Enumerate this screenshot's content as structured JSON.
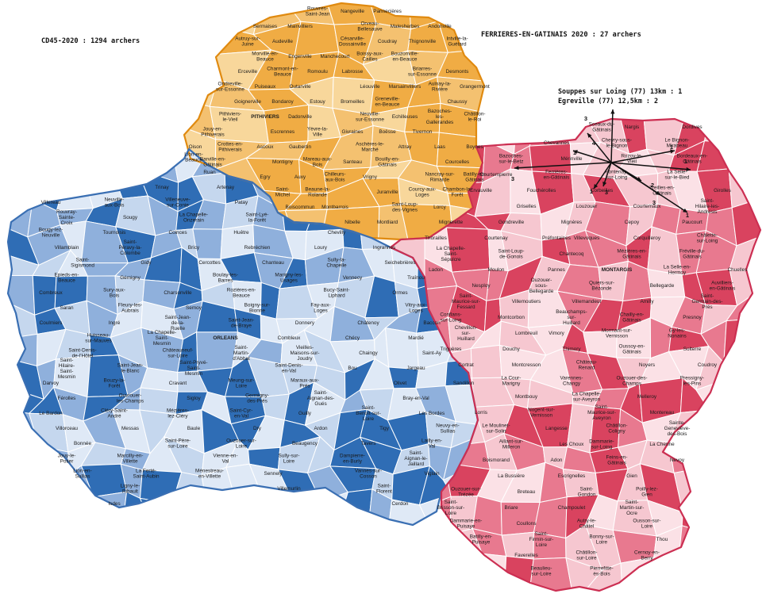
{
  "headers": {
    "left": "CD45-2020 : 1294 archers",
    "right": "FERRIERES-EN-GATINAIS 2020 : 27 archers"
  },
  "annotations": {
    "line1": "Souppes sur Loing (77) 13km : 1",
    "line2": "Egreville (77) 12,5km : 2"
  },
  "colors": {
    "north_orange": "#f0ac44",
    "north_orange_light": "#f8d79b",
    "center_blue": "#4f86c6",
    "center_blue_light": "#c5d7ee",
    "east_pink": "#e8798f",
    "east_pink_light": "#f6c7d0",
    "outline_north": "#e08a10",
    "outline_center": "#3a6fb3",
    "outline_east": "#cc2f52"
  },
  "arrow_counts": [
    "4",
    "1",
    "3",
    "3",
    "1",
    "3",
    "2",
    "3",
    "1",
    "1",
    "1"
  ],
  "communes": {
    "north": [
      "Rouvres-Saint-Jean",
      "Nangeville",
      "Pannecières",
      "Sermaises",
      "Mainvilliers",
      "Orveau-Bellesauve",
      "Malesherbes",
      "Andonville",
      "Autruy-sur-Juine",
      "Audeville",
      "Césarville-Dossainville",
      "Coudray",
      "Thignonville",
      "Intville-la-Guétard",
      "Morville-en-Beauce",
      "Engenville",
      "Manchecourt",
      "Boissy-aux-Cailles",
      "Bouzonville-en-Beauce",
      "Erceville",
      "Charmont-en-Beauce",
      "Romoulu",
      "Labrosse",
      "Briarres-sur-Essonne",
      "Desmonts",
      "Ondreville-sur-Essonne",
      "Puiseaux",
      "Outarville",
      "Léouville",
      "Marsainvilliers",
      "Aulnay-la-Rivière",
      "Grangermont",
      "Goignerville",
      "Bondaroy",
      "Estouy",
      "Bromeilles",
      "Greneville-en-Beauce",
      "Chaussy",
      "Pithiviers-le-Vieil",
      "PITHIVIERS",
      "Dadonville",
      "Neuville-sur-Essonne",
      "Echilleuses",
      "Bazoches-les-Gallerandes",
      "Châtillon-le-Roi",
      "Jouy-en-Pithiverais",
      "Escrennes",
      "Yèvre-la-Ville",
      "Givraines",
      "Boësse",
      "Tivernon",
      "Oison",
      "Crottes-en-Pithiverais",
      "Ascoux",
      "Gaubertin",
      "Aschères-le-Marché",
      "Attray",
      "Laas",
      "Boynes",
      "Barville-en-Gâtinais",
      "Montigny",
      "Mareau-aux-Bois",
      "Santeau",
      "Bouilly-en-Gâtinais",
      "Courcelles",
      "Egry",
      "Auxy",
      "Chilleurs-aux-Bois",
      "Vrigny",
      "Nancray-sur-Rimarde",
      "Batilly-en-Gâtinais",
      "Saint-Michel",
      "Beaune-la-Rolande",
      "Juranville",
      "Courcy-aux-Loges",
      "Chambon-la-Forêt",
      "Boiscommun",
      "Montbarrois",
      "Saint-Loup-des-Vignes",
      "Lorcy",
      "Nibelle",
      "Montliard"
    ],
    "center": [
      "Lion-en-Beauce",
      "Ruan",
      "Trinay",
      "Artenay",
      "Villereau",
      "Neuville-aux-Bois",
      "Villeneuve-sur-Conie",
      "Patay",
      "Rouvray-Sainte-Croix",
      "Sougy",
      "La Chapelle-Onzerain",
      "Saint-Lyé-la-Forêt",
      "Bougy-lez-Neuville",
      "Tournoisis",
      "Coinces",
      "Huêtre",
      "Chevilly",
      "Villamblain",
      "Saint-Péravy-la-Colombe",
      "Bricy",
      "Rebréchien",
      "Loury",
      "Ingrannes",
      "Saint-Sigismond",
      "Gidy",
      "Cercottes",
      "Chanteau",
      "Sully-la-Chapelle",
      "Seichebrières",
      "Epieds-en-Beauce",
      "Gémigny",
      "Boulay-les-Barres",
      "Marigny-les-Usages",
      "Vennecy",
      "Traînou",
      "Combreux",
      "Sury-aux-Bois",
      "Charsonville",
      "Rozières-en-Beauce",
      "Bucy-Saint-Liphard",
      "Ormes",
      "Saran",
      "Fleury-les-Aubrais",
      "Semoy",
      "Boigny-sur-Bionne",
      "Fay-aux-Loges",
      "Vitry-aux-Loges",
      "Coulmiers",
      "Ingré",
      "Saint-Jean-de-la-Ruelle",
      "Saint-Jean-de-Braye",
      "Donnery",
      "Châtenoy",
      "Baccon",
      "Huisseau-sur-Mauves",
      "La Chapelle-Saint-Mesmin",
      "ORLEANS",
      "Combleux",
      "Chécy",
      "Mardié",
      "Saint-Denis-de-l'Hôtel",
      "Châteauneuf-sur-Loire",
      "Saint-Martin-d'Abbat",
      "Vieilles-Maisons-sur-Joudry",
      "Chaingy",
      "Saint-Ay",
      "Saint-Hilaire-Saint-Mesmin",
      "Saint-Jean-le-Blanc",
      "Saint-Pryvé-Saint-Mesmin",
      "Saint-Denis-en-Val",
      "Bou",
      "Jargeau",
      "Darvoy",
      "Bouzy-la-Forêt",
      "Cravant",
      "Meung-sur-Loire",
      "Maraux-aux-Prés",
      "Olivet",
      "Sandillon",
      "Férolles",
      "Ouvrouer-les-Champs",
      "Sigloy",
      "Germigny-des-Prés",
      "Saint-Aignan-des-Gués",
      "Bray-en-Val",
      "Le Bardon",
      "Cléry-Saint-André",
      "Mézières-lez-Cléry",
      "Saint-Cyr-en-Val",
      "Guilly",
      "Saint-Benoît-sur-Loire",
      "Les Bordes",
      "Villorceau",
      "Messas",
      "Baule",
      "Dry",
      "Ardon",
      "Tigy",
      "Neuvy-en-Sullias",
      "Bonnée",
      "Saint-Père-sur-Loire",
      "Ouzouer-sur-Loire",
      "Beaugency",
      "Tavers",
      "Lailly-en-Val",
      "Jouy-le-Potier",
      "Marcilly-en-Villette",
      "Vienne-en-Val",
      "Sully-sur-Loire",
      "Dampierre-en-Burly",
      "Saint-Aignan-le-Jaillard",
      "Lion-en-Sullias",
      "La Ferté-Saint-Aubin",
      "Ménestreau-en-Villette",
      "Sennely",
      "Vannes-sur-Cosson",
      "Viglain",
      "Ligny-le-Ribault",
      "Villemurlin",
      "Saint-Florent",
      "Isdes",
      "Cerdon"
    ],
    "east": [
      "Sceaux-du-Gâtinais",
      "Nargis",
      "Dordives",
      "Chevannes",
      "Chevry-sous-le-Bignon",
      "Le Bignon-Mirabeau",
      "Bazoches-sur-le-Betz",
      "Mérinville",
      "Rozoy-le-Vieil",
      "Bordeaux-en-Gâtinais",
      "Courtempierre",
      "Ferrières-en-Gâtinais",
      "Fontenay-sur-Loing",
      "La Selle-sur-le-Bied",
      "Ervauville",
      "Fouchérolles",
      "Corbeilles",
      "Treilles-en-Gâtinais",
      "Girolles",
      "Griselles",
      "Louzouer",
      "Courtemaux",
      "Saint-Hilaire-les-Andrésis",
      "Mignerette",
      "Gondreville",
      "Mignères",
      "Cepoy",
      "Paucourt",
      "Thorailles",
      "Courtenay",
      "Préfontaines",
      "Villevoques",
      "Corquilleroy",
      "Châlette-sur-Loing",
      "La Chapelle-Saint-Sépulcre",
      "Saint-Loup-de-Gonois",
      "Chantecoq",
      "Mézières-en-Gâtinais",
      "Fréville-du-Gâtinais",
      "Ladon",
      "Moulon",
      "Pannes",
      "MONTARGIS",
      "La Selle-en-Hermoy",
      "Chuelles",
      "Nesploy",
      "Ouzouer-sous-Bellegarde",
      "Quiers-sur-Bézonde",
      "Bellegarde",
      "Auvilliers-en-Gâtinais",
      "Saint-Maurice-sur-Fessard",
      "Villemoutiers",
      "Villemandeur",
      "Amilly",
      "Saint-Germain-des-Prés",
      "Conflans-sur-Loing",
      "Montcorbon",
      "Beauchamps-sur-Huillard",
      "Chailly-en-Gâtinais",
      "Presnoy",
      "Chevillon-sur-Huillard",
      "Lombreuil",
      "Vimory",
      "Mormant-sur-Vernisson",
      "Gy-les-Nonains",
      "Triguères",
      "Douchy",
      "Thimory",
      "Oussoy-en-Gâtinais",
      "Solterre",
      "Cortrat",
      "Montcresson",
      "Château-Renard",
      "Noyers",
      "Coudroy",
      "La Cour-Marigny",
      "Varennes-Changy",
      "Ouzouer-des-Champs",
      "Pressigny-les-Pins",
      "Montbouy",
      "La Chapelle-sur-Aveyron",
      "Melleroy",
      "Lorris",
      "Nogent-sur-Vernisson",
      "Saint-Maurice-sur-Aveyron",
      "Montereau",
      "Le Moulinet-sur-Solin",
      "Langesse",
      "Châtillon-Coligny",
      "Sainte-Geneviève-des-Bois",
      "Aillant-sur-Milleron",
      "Les Choux",
      "Dammarie-sur-Loing",
      "La Chenne",
      "Boismorand",
      "Adon",
      "Feins-en-Gâtinais",
      "Nevoy",
      "La Bussière",
      "Escrignelles",
      "Gien",
      "Ouzouer-sur-Trézée",
      "Breteau",
      "Saint-Gondon",
      "Poilly-lez-Gien",
      "Saint-Brisson-sur-Loire",
      "Briare",
      "Champoulet",
      "Saint-Martin-sur-Ocre",
      "Dammarie-en-Puisaye",
      "Coullons",
      "Autry-le-Châtel",
      "Ousson-sur-Loire",
      "Batilly-en-Puisaye",
      "Saint-Firmin-sur-Loire",
      "Bonny-sur-Loire",
      "Thou",
      "Faverelles",
      "Châtillon-sur-Loire",
      "Cernoy-en-Berry",
      "Beaulieu-sur-Loire",
      "Pierrefitte-ès-Bois"
    ]
  }
}
